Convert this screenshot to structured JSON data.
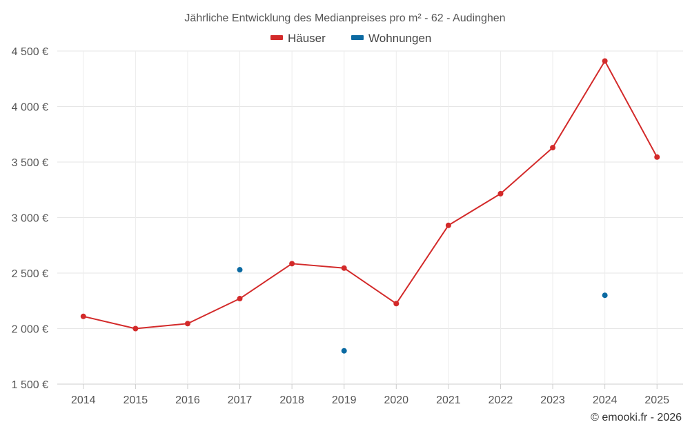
{
  "chart_data": {
    "type": "line",
    "title": "Jährliche Entwicklung des Medianpreises pro m² - 62 - Audinghen",
    "categories": [
      "2014",
      "2015",
      "2016",
      "2017",
      "2018",
      "2019",
      "2020",
      "2021",
      "2022",
      "2023",
      "2024",
      "2025"
    ],
    "y_ticks": [
      "1 500 €",
      "2 000 €",
      "2 500 €",
      "3 000 €",
      "3 500 €",
      "4 000 €",
      "4 500 €"
    ],
    "ylim": [
      1500,
      4500
    ],
    "series": [
      {
        "name": "Häuser",
        "color": "#d32a2a",
        "values": [
          2110,
          2000,
          2045,
          2270,
          2585,
          2545,
          2225,
          2930,
          3215,
          3630,
          4410,
          3545
        ]
      },
      {
        "name": "Wohnungen",
        "color": "#0b6aa2",
        "values": [
          null,
          null,
          null,
          2530,
          null,
          1800,
          null,
          null,
          null,
          null,
          2300,
          null
        ]
      }
    ],
    "credit": "© emooki.fr - 2026"
  }
}
